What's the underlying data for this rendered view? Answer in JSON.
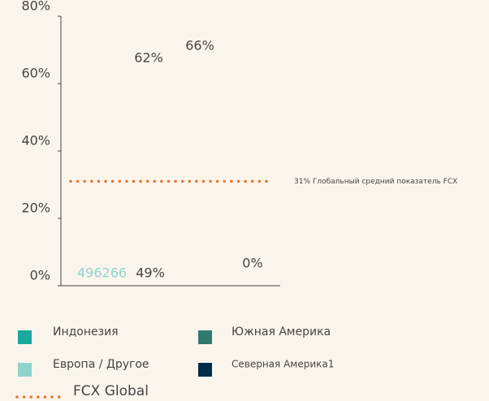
{
  "chart_data": {
    "type": "bar",
    "ylim": [
      0,
      80
    ],
    "yticks": [
      {
        "value": 0,
        "label": "0%"
      },
      {
        "value": 20,
        "label": "20%"
      },
      {
        "value": 40,
        "label": "40%"
      },
      {
        "value": 60,
        "label": "60%"
      },
      {
        "value": 80,
        "label": "80%"
      }
    ],
    "values": [
      62,
      66,
      49,
      0
    ],
    "value_labels": [
      "62%",
      "66%",
      "49%",
      "0%"
    ],
    "annotations": [
      "496266"
    ],
    "reference_line": {
      "value": 31,
      "label": "31% Глобальный средний показатель FCX",
      "color": "#e8772e"
    },
    "legend": [
      {
        "name": "Индонезия",
        "color": "#1aa89c"
      },
      {
        "name": "Южная Америка",
        "color": "#2e7a6e"
      },
      {
        "name": "Европа / Другое",
        "color": "#8fd3cf"
      },
      {
        "name": "Северная Америка1",
        "color": "#002b49"
      },
      {
        "name": "FCX Global",
        "color": "#e8772e"
      }
    ]
  }
}
